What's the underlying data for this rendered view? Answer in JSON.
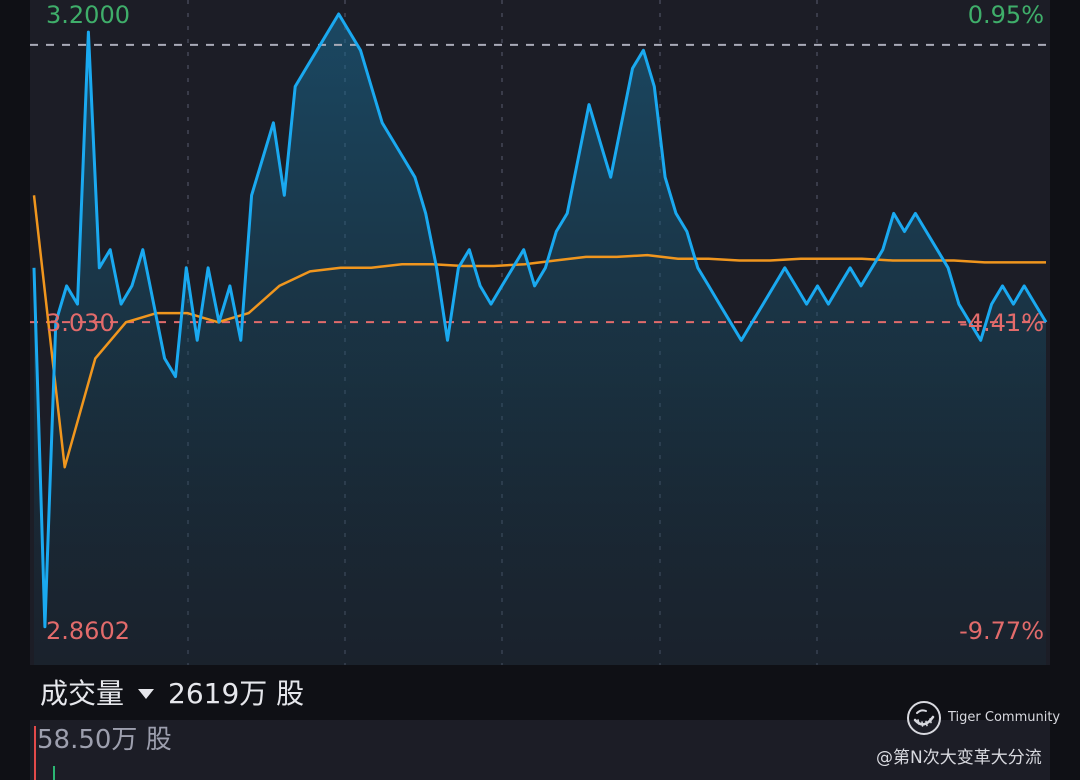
{
  "price_axis": {
    "high": "3.2000",
    "prev_close": "3.030",
    "low": "2.8602"
  },
  "percent_axis": {
    "high": "0.95%",
    "prev_close": "-4.41%",
    "low": "-9.77%"
  },
  "volume": {
    "title": "成交量",
    "total": "2619万 股",
    "max_bar": "58.50万 股"
  },
  "watermark": {
    "brand": "Tiger Community",
    "user": "@第N次大变革大分流"
  },
  "colors": {
    "price_line": "#1aa9f0",
    "avg_line": "#f0961e",
    "up": "#e26b6b",
    "down": "#3fae6a",
    "high_ref": "#a9abb8",
    "background": "#1c1d26"
  },
  "chart_data": {
    "type": "line",
    "ylim": [
      2.8602,
      3.2
    ],
    "percent_range": [
      "0.95%",
      "-9.77%"
    ],
    "reference_lines": {
      "high": 3.183,
      "prev_close": 3.03
    },
    "series": [
      {
        "values": [
          3.06,
          2.862,
          3.03,
          3.05,
          3.04,
          3.19,
          3.06,
          3.07,
          3.04,
          3.05,
          3.07,
          3.04,
          3.01,
          3.0,
          3.06,
          3.02,
          3.06,
          3.03,
          3.05,
          3.02,
          3.1,
          3.12,
          3.14,
          3.1,
          3.16,
          3.17,
          3.18,
          3.19,
          3.2,
          3.19,
          3.18,
          3.16,
          3.14,
          3.13,
          3.12,
          3.11,
          3.09,
          3.06,
          3.02,
          3.06,
          3.07,
          3.05,
          3.04,
          3.05,
          3.06,
          3.07,
          3.05,
          3.06,
          3.08,
          3.09,
          3.12,
          3.15,
          3.13,
          3.11,
          3.14,
          3.17,
          3.18,
          3.16,
          3.11,
          3.09,
          3.08,
          3.06,
          3.05,
          3.04,
          3.03,
          3.02,
          3.03,
          3.04,
          3.05,
          3.06,
          3.05,
          3.04,
          3.05,
          3.04,
          3.05,
          3.06,
          3.05,
          3.06,
          3.07,
          3.09,
          3.08,
          3.09,
          3.08,
          3.07,
          3.06,
          3.04,
          3.03,
          3.02,
          3.04,
          3.05,
          3.04,
          3.05,
          3.04,
          3.03
        ],
        "color": "#1aa9f0"
      },
      {
        "values": [
          3.1,
          2.95,
          3.01,
          3.03,
          3.035,
          3.035,
          3.03,
          3.035,
          3.05,
          3.058,
          3.06,
          3.06,
          3.062,
          3.062,
          3.061,
          3.061,
          3.062,
          3.064,
          3.066,
          3.066,
          3.067,
          3.065,
          3.065,
          3.064,
          3.064,
          3.065,
          3.065,
          3.065,
          3.064,
          3.064,
          3.064,
          3.063,
          3.063,
          3.063
        ],
        "color": "#f0961e"
      }
    ]
  }
}
